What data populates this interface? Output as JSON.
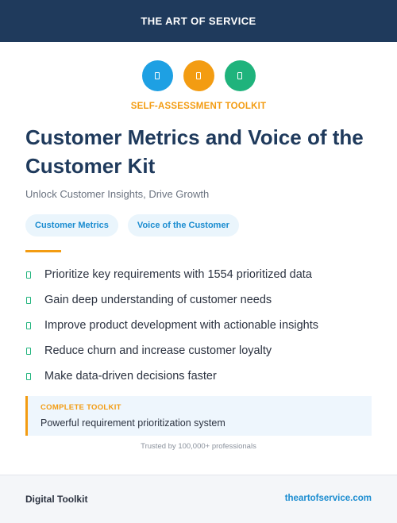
{
  "header": {
    "brand": "THE ART OF SERVICE"
  },
  "icons": [
    {
      "name": "document-icon",
      "color": "#1ea0e3"
    },
    {
      "name": "document-icon",
      "color": "#f39c12"
    },
    {
      "name": "document-icon",
      "color": "#1fb37c"
    }
  ],
  "kicker": "SELF-ASSESSMENT TOOLKIT",
  "title": "Customer Metrics and Voice of the Customer Kit",
  "subtitle": "Unlock Customer Insights, Drive Growth",
  "tags": [
    "Customer Metrics",
    "Voice of the Customer"
  ],
  "features": [
    "Prioritize key requirements with 1554 prioritized data",
    "Gain deep understanding of customer needs",
    "Improve product development with actionable insights",
    "Reduce churn and increase customer loyalty",
    "Make data-driven decisions faster"
  ],
  "callout": {
    "label": "COMPLETE TOOLKIT",
    "text": "Powerful requirement prioritization system"
  },
  "trusted": "Trusted by 100,000+ professionals",
  "footer": {
    "left": "Digital Toolkit",
    "right": "theartofservice.com"
  },
  "colors": {
    "navy": "#1f3a5c",
    "orange": "#f39c12",
    "blue": "#1a8cd0",
    "green": "#1fb37c"
  }
}
